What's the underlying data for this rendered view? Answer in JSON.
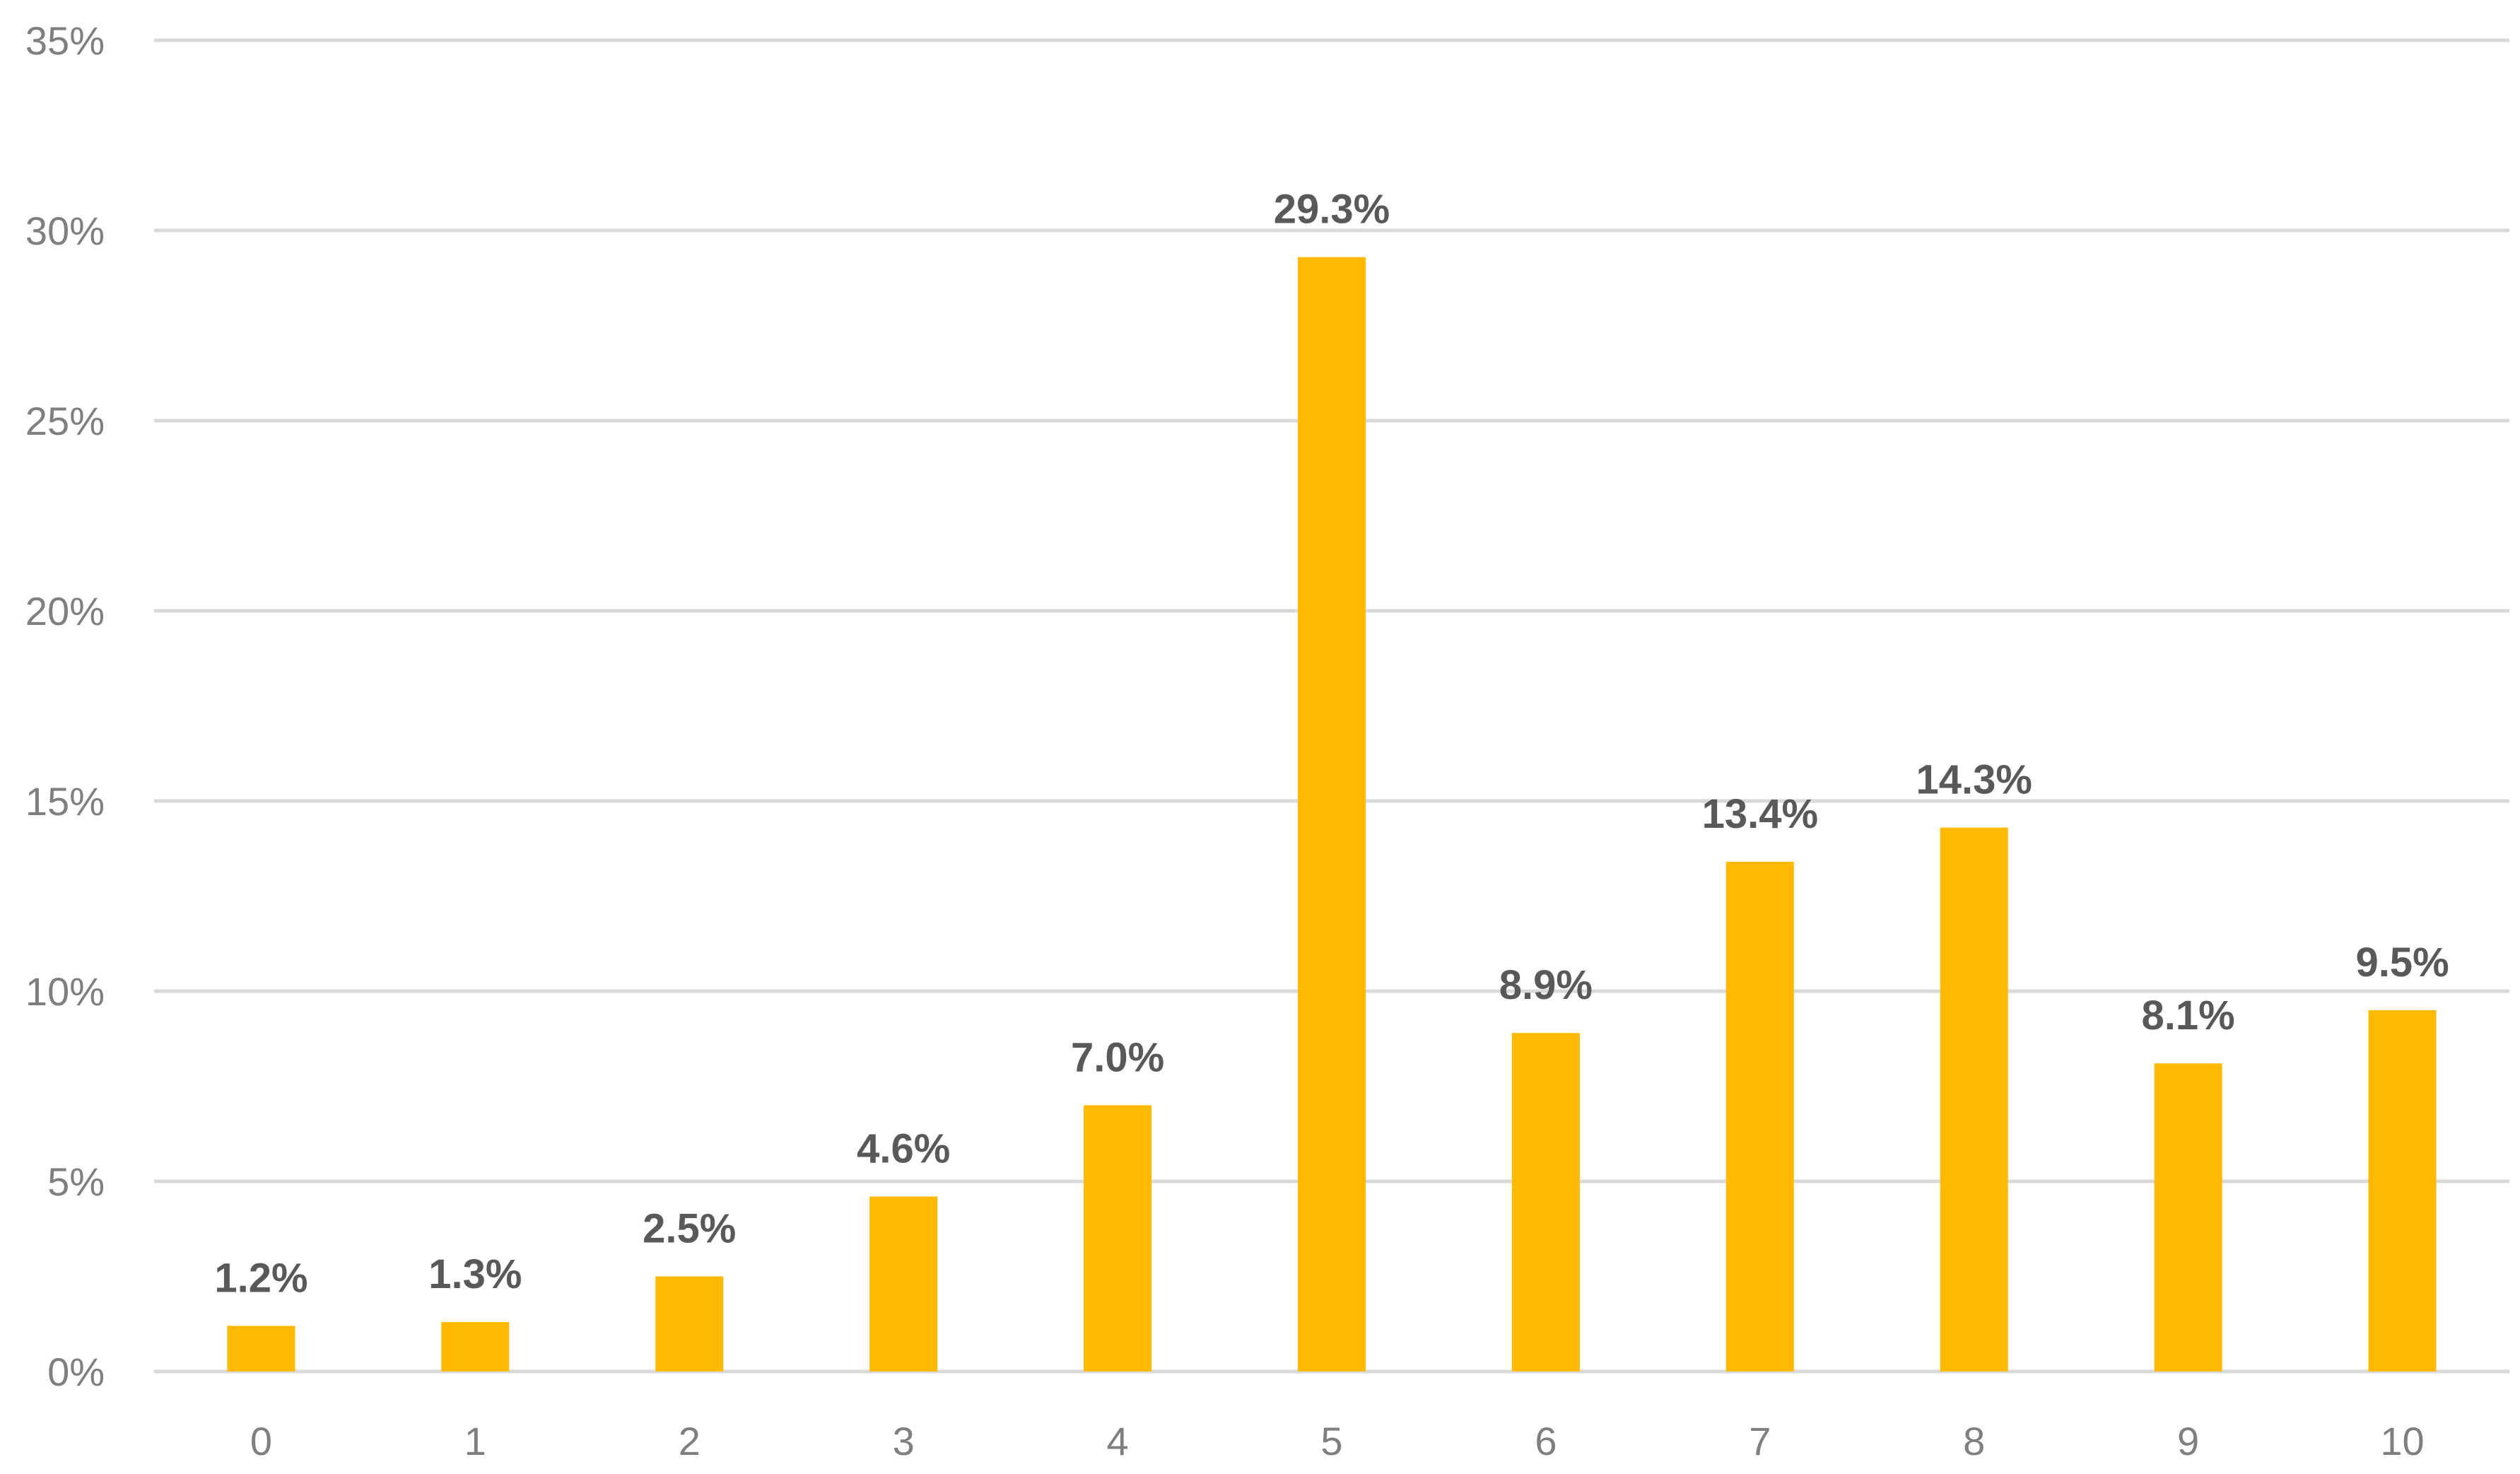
{
  "chart_data": {
    "type": "bar",
    "categories": [
      "0",
      "1",
      "2",
      "3",
      "4",
      "5",
      "6",
      "7",
      "8",
      "9",
      "10"
    ],
    "values": [
      1.2,
      1.3,
      2.5,
      4.6,
      7.0,
      29.3,
      8.9,
      13.4,
      14.3,
      8.1,
      9.5
    ],
    "data_labels": [
      "1.2%",
      "1.3%",
      "2.5%",
      "4.6%",
      "7.0%",
      "29.3%",
      "8.9%",
      "13.4%",
      "14.3%",
      "8.1%",
      "9.5%"
    ],
    "y_ticks": [
      0,
      5,
      10,
      15,
      20,
      25,
      30,
      35
    ],
    "y_tick_labels": [
      "0%",
      "5%",
      "10%",
      "15%",
      "20%",
      "25%",
      "30%",
      "35%"
    ],
    "ylim": [
      0,
      35
    ],
    "y_unit": "%",
    "grid": true,
    "legend": "none",
    "title": "",
    "xlabel": "",
    "ylabel": "",
    "colors": {
      "bar": "#FFB900",
      "grid": "#D9D9D9",
      "tick_text": "#7F7F7F",
      "data_label_text": "#595959"
    }
  }
}
